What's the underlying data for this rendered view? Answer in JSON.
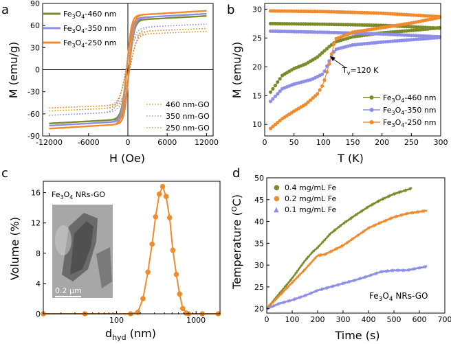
{
  "colors": {
    "olive": "#7b8b2a",
    "lav": "#8e8ee8",
    "orange": "#f08a2c",
    "gold": "#c9a227"
  },
  "chart_data": [
    {
      "panel": "a",
      "type": "line",
      "xlabel": "H (Oe)",
      "ylabel": "M (emu/g)",
      "xlim": [
        -13000,
        13000
      ],
      "ylim": [
        -90,
        90
      ],
      "xticks": [
        "-12000",
        "-6000",
        "0",
        "6000",
        "12000"
      ],
      "xtick_values": [
        -12000,
        -6000,
        0,
        6000,
        12000
      ],
      "yticks": [
        "-90",
        "-60",
        "-30",
        "0",
        "30",
        "60",
        "90"
      ],
      "ytick_values": [
        -90,
        -60,
        -30,
        0,
        30,
        60,
        90
      ],
      "series": [
        {
          "name": "460 nm",
          "legend": "Fe3O4-460 nm",
          "color": "olive",
          "style": "solid",
          "ms": 73,
          "h0": 480
        },
        {
          "name": "350 nm",
          "legend": "Fe3O4-350 nm",
          "color": "lav",
          "style": "solid",
          "ms": 76,
          "h0": 470
        },
        {
          "name": "250 nm",
          "legend": "Fe3O4-250 nm",
          "color": "orange",
          "style": "solid",
          "ms": 80,
          "h0": 420
        },
        {
          "name": "460 nm-GO",
          "legend": "460 nm-GO",
          "color": "gold",
          "style": "dotted",
          "ms": 56,
          "h0": 700
        },
        {
          "name": "350 nm-GO",
          "legend": "350 nm-GO",
          "color": "lav",
          "style": "dotted",
          "ms": 62,
          "h0": 750
        },
        {
          "name": "250 nm-GO",
          "legend": "250 nm-GO",
          "color": "orange",
          "style": "dotted",
          "ms": 52,
          "h0": 650
        }
      ]
    },
    {
      "panel": "b",
      "type": "scatter",
      "xlabel": "T (K)",
      "ylabel": "M (emu/g)",
      "xlim": [
        0,
        300
      ],
      "ylim": [
        8,
        31
      ],
      "xticks": [
        "0",
        "50",
        "100",
        "150",
        "200",
        "250",
        "300"
      ],
      "xtick_values": [
        0,
        50,
        100,
        150,
        200,
        250,
        300
      ],
      "yticks": [
        "10",
        "15",
        "20",
        "25",
        "30"
      ],
      "ytick_values": [
        10,
        15,
        20,
        25,
        30
      ],
      "annotation": {
        "label": "T",
        "sub": "v",
        "rest": "=120 K",
        "x": 120,
        "y": 24.8
      },
      "series": [
        {
          "legend": "Fe3O4-460 nm",
          "color": "olive",
          "zfc": [
            [
              10,
              15.6
            ],
            [
              30,
              18.5
            ],
            [
              50,
              19.7
            ],
            [
              70,
              20.5
            ],
            [
              90,
              21.7
            ],
            [
              110,
              23.5
            ],
            [
              120,
              24.3
            ],
            [
              150,
              25.2
            ],
            [
              200,
              25.9
            ],
            [
              250,
              26.3
            ],
            [
              300,
              26.8
            ]
          ],
          "fc": [
            [
              10,
              27.5
            ],
            [
              100,
              27.4
            ],
            [
              200,
              27.2
            ],
            [
              300,
              26.7
            ]
          ]
        },
        {
          "legend": "Fe3O4-350 nm",
          "color": "lav",
          "zfc": [
            [
              10,
              14.0
            ],
            [
              30,
              16.2
            ],
            [
              50,
              17.0
            ],
            [
              80,
              17.8
            ],
            [
              100,
              18.8
            ],
            [
              110,
              21.0
            ],
            [
              120,
              23.0
            ],
            [
              150,
              23.8
            ],
            [
              200,
              24.3
            ],
            [
              250,
              24.7
            ],
            [
              300,
              25.1
            ]
          ],
          "fc": [
            [
              10,
              26.2
            ],
            [
              100,
              26.0
            ],
            [
              200,
              25.7
            ],
            [
              300,
              25.2
            ]
          ]
        },
        {
          "legend": "Fe3O4-250 nm",
          "color": "orange",
          "zfc": [
            [
              10,
              9.3
            ],
            [
              30,
              11.0
            ],
            [
              50,
              12.3
            ],
            [
              70,
              13.5
            ],
            [
              90,
              15.3
            ],
            [
              100,
              17.0
            ],
            [
              110,
              20.5
            ],
            [
              120,
              24.8
            ],
            [
              150,
              26.0
            ],
            [
              200,
              26.8
            ],
            [
              250,
              27.6
            ],
            [
              300,
              28.6
            ]
          ],
          "fc": [
            [
              10,
              29.7
            ],
            [
              100,
              29.6
            ],
            [
              200,
              29.3
            ],
            [
              300,
              28.7
            ]
          ]
        }
      ]
    },
    {
      "panel": "c",
      "type": "line",
      "xscale": "log",
      "xlabel": "d",
      "xlabel_sub": "hyd",
      "xlabel_rest": " (nm)",
      "ylabel": "Volume (%)",
      "xlim": [
        12,
        2000
      ],
      "ylim": [
        0,
        17.5
      ],
      "xticks": [
        "100",
        "1000"
      ],
      "xtick_values": [
        100,
        1000
      ],
      "yticks": [
        "0",
        "4",
        "8",
        "12",
        "16"
      ],
      "ytick_values": [
        0,
        4,
        8,
        12,
        16
      ],
      "inset_label": "Fe3O4 NRs-GO",
      "inset_scale": "0.2 µm",
      "series": [
        {
          "name": "size distribution",
          "color": "orange",
          "points": [
            [
              12,
              0
            ],
            [
              40,
              0
            ],
            [
              150,
              0
            ],
            [
              185,
              0.2
            ],
            [
              215,
              2.0
            ],
            [
              248,
              5.5
            ],
            [
              280,
              9.2
            ],
            [
              310,
              12.8
            ],
            [
              345,
              15.8
            ],
            [
              380,
              16.8
            ],
            [
              420,
              15.5
            ],
            [
              465,
              12.7
            ],
            [
              510,
              8.4
            ],
            [
              565,
              5.2
            ],
            [
              620,
              2.6
            ],
            [
              680,
              0.7
            ],
            [
              750,
              0.1
            ],
            [
              800,
              0
            ],
            [
              1200,
              0
            ],
            [
              1900,
              0
            ]
          ]
        }
      ]
    },
    {
      "panel": "d",
      "type": "line",
      "xlabel": "Time (s)",
      "ylabel": "Temperature (°C)",
      "xlim": [
        0,
        700
      ],
      "ylim": [
        19,
        50
      ],
      "xticks": [
        "0",
        "100",
        "200",
        "300",
        "400",
        "500",
        "600",
        "700"
      ],
      "xtick_values": [
        0,
        100,
        200,
        300,
        400,
        500,
        600,
        700
      ],
      "yticks": [
        "20",
        "25",
        "30",
        "35",
        "40",
        "45",
        "50"
      ],
      "ytick_values": [
        20,
        25,
        30,
        35,
        40,
        45,
        50
      ],
      "inset_label": "Fe3O4 NRs-GO",
      "series": [
        {
          "legend": "0.4 mg/mL Fe",
          "color": "olive",
          "points": [
            [
              0,
              20
            ],
            [
              50,
              23.5
            ],
            [
              100,
              27
            ],
            [
              150,
              31
            ],
            [
              180,
              33
            ],
            [
              200,
              34
            ],
            [
              250,
              37.2
            ],
            [
              300,
              39.5
            ],
            [
              350,
              41.5
            ],
            [
              400,
              43.4
            ],
            [
              450,
              45
            ],
            [
              500,
              46.3
            ],
            [
              570,
              47.6
            ]
          ]
        },
        {
          "legend": "0.2 mg/mL Fe",
          "color": "orange",
          "points": [
            [
              0,
              20
            ],
            [
              50,
              23
            ],
            [
              100,
              26
            ],
            [
              150,
              29
            ],
            [
              200,
              32.2
            ],
            [
              230,
              32.5
            ],
            [
              300,
              34.5
            ],
            [
              350,
              36.5
            ],
            [
              400,
              38.5
            ],
            [
              450,
              39.8
            ],
            [
              500,
              41
            ],
            [
              550,
              41.8
            ],
            [
              630,
              42.5
            ]
          ]
        },
        {
          "legend": "0.1 mg/mL Fe",
          "color": "lav",
          "points": [
            [
              0,
              20
            ],
            [
              50,
              21.2
            ],
            [
              100,
              22
            ],
            [
              150,
              23
            ],
            [
              200,
              24.2
            ],
            [
              250,
              25
            ],
            [
              300,
              25.8
            ],
            [
              350,
              26.6
            ],
            [
              400,
              27.5
            ],
            [
              450,
              28.5
            ],
            [
              500,
              28.8
            ],
            [
              550,
              28.8
            ],
            [
              630,
              29.7
            ]
          ]
        }
      ]
    }
  ]
}
